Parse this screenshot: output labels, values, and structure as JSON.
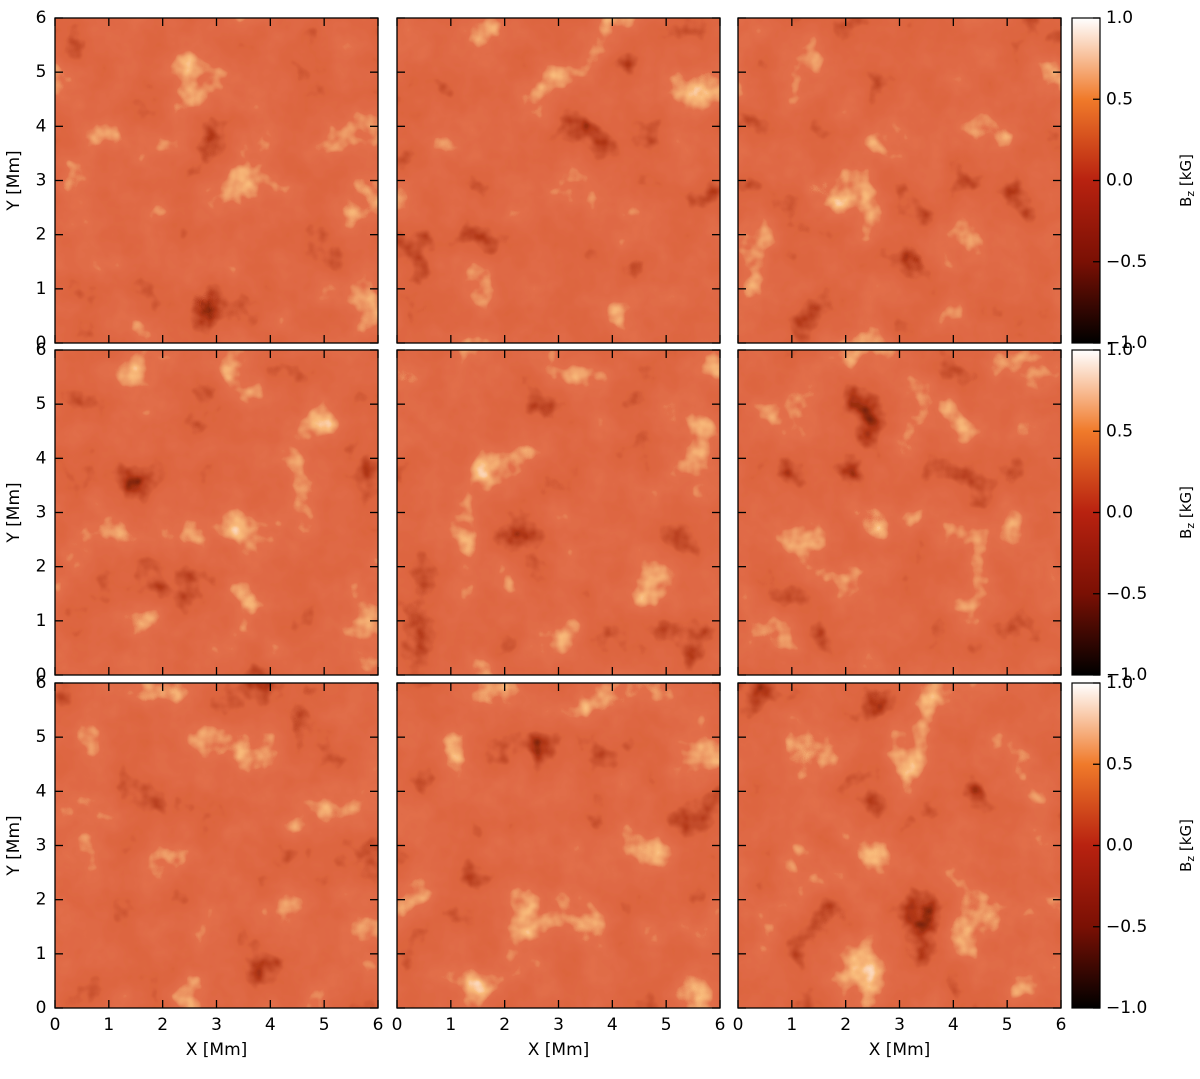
{
  "chart_data": {
    "type": "image-grid",
    "rows": 3,
    "columns": 3,
    "xlabel": "X [Mm]",
    "ylabel": "Y [Mm]",
    "xlim": [
      0,
      6
    ],
    "ylim": [
      0,
      6
    ],
    "xticks": [
      0,
      1,
      2,
      3,
      4,
      5,
      6
    ],
    "yticks": [
      0,
      1,
      2,
      3,
      4,
      5,
      6
    ],
    "colorbar": {
      "symbol": "B",
      "subscript": "z",
      "unit": "[kG]",
      "lim": [
        -1,
        1
      ],
      "ticks": [
        {
          "value": 1,
          "label": "1.0"
        },
        {
          "value": 0.5,
          "label": "0.5"
        },
        {
          "value": 0,
          "label": "0.0"
        },
        {
          "value": -0.5,
          "label": "−0.5"
        },
        {
          "value": -1,
          "label": "−1.0"
        }
      ],
      "colormap": [
        "#000000",
        "#7a1004",
        "#b82210",
        "#f07a2a",
        "#ffffff"
      ]
    }
  }
}
